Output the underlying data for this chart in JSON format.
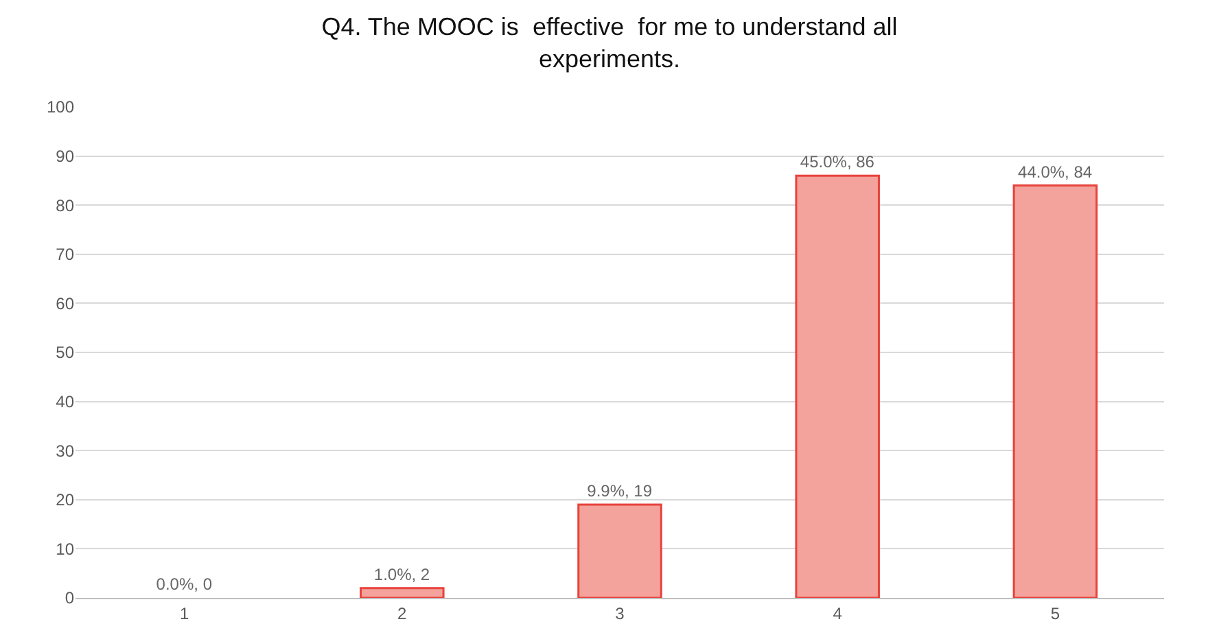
{
  "chart_data": {
    "type": "bar",
    "title": "Q4. The MOOC is  effective  for me to understand all experiments.",
    "categories": [
      "1",
      "2",
      "3",
      "4",
      "5"
    ],
    "values": [
      0,
      2,
      19,
      86,
      84
    ],
    "value_labels": [
      "0.0%, 0",
      "1.0%, 2",
      "9.9%, 19",
      "45.0%, 86",
      "44.0%, 84"
    ],
    "color": "#f4a29c",
    "ylim": [
      0,
      100
    ],
    "yticks": [
      0,
      10,
      20,
      30,
      40,
      50,
      60,
      70,
      80,
      90,
      100
    ],
    "grid": "y",
    "legend": false
  }
}
